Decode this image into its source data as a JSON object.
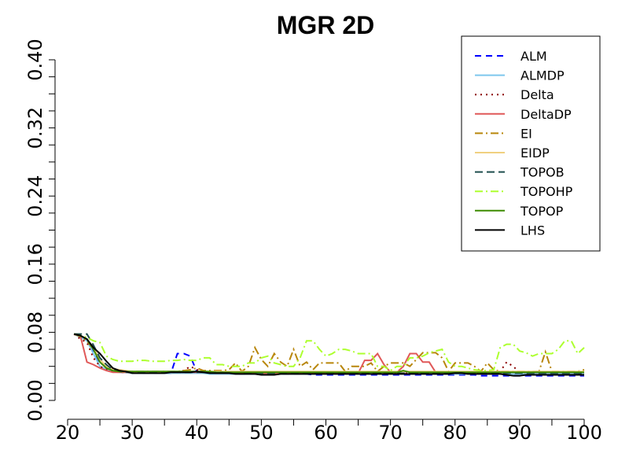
{
  "chart_data": {
    "type": "line",
    "title": "MGR 2D",
    "xlabel": "",
    "ylabel": "",
    "xlim": [
      20,
      100
    ],
    "ylim": [
      0,
      0.4
    ],
    "xticks": [
      20,
      30,
      40,
      50,
      60,
      70,
      80,
      90,
      100
    ],
    "yticks": [
      0,
      0.08,
      0.16,
      0.24,
      0.32,
      0.4
    ],
    "xtick_labels": [
      "20",
      "30",
      "40",
      "50",
      "60",
      "70",
      "80",
      "90",
      "100"
    ],
    "ytick_labels": [
      "0.00",
      "0.08",
      "0.16",
      "0.24",
      "0.32",
      "0.40"
    ],
    "legend_position": "top-right",
    "x": [
      21,
      22,
      23,
      24,
      25,
      26,
      27,
      28,
      29,
      30,
      31,
      32,
      33,
      34,
      35,
      36,
      37,
      38,
      39,
      40,
      41,
      42,
      43,
      44,
      45,
      46,
      47,
      48,
      49,
      50,
      51,
      52,
      53,
      54,
      55,
      56,
      57,
      58,
      59,
      60,
      61,
      62,
      63,
      64,
      65,
      66,
      67,
      68,
      69,
      70,
      71,
      72,
      73,
      74,
      75,
      76,
      77,
      78,
      79,
      80,
      81,
      82,
      83,
      84,
      85,
      86,
      87,
      88,
      89,
      90,
      91,
      92,
      93,
      94,
      95,
      96,
      97,
      98,
      99,
      100
    ],
    "series": [
      {
        "name": "ALM",
        "color": "#0000ff",
        "dash": "8,6",
        "values": [
          0.078,
          0.075,
          0.072,
          0.058,
          0.04,
          0.036,
          0.034,
          0.033,
          0.033,
          0.033,
          0.032,
          0.032,
          0.032,
          0.032,
          0.032,
          0.032,
          0.055,
          0.055,
          0.052,
          0.034,
          0.033,
          0.032,
          0.032,
          0.032,
          0.032,
          0.031,
          0.031,
          0.031,
          0.031,
          0.031,
          0.031,
          0.031,
          0.031,
          0.031,
          0.031,
          0.031,
          0.031,
          0.03,
          0.03,
          0.03,
          0.03,
          0.03,
          0.03,
          0.03,
          0.03,
          0.03,
          0.03,
          0.03,
          0.03,
          0.03,
          0.03,
          0.03,
          0.03,
          0.03,
          0.03,
          0.03,
          0.03,
          0.03,
          0.03,
          0.03,
          0.03,
          0.03,
          0.03,
          0.029,
          0.029,
          0.029,
          0.029,
          0.029,
          0.029,
          0.029,
          0.029,
          0.029,
          0.029,
          0.029,
          0.029,
          0.029,
          0.029,
          0.029,
          0.029,
          0.029
        ]
      },
      {
        "name": "ALMDP",
        "color": "#7ec8ed",
        "dash": "",
        "values": [
          0.078,
          0.074,
          0.07,
          0.055,
          0.04,
          0.036,
          0.034,
          0.033,
          0.033,
          0.032,
          0.032,
          0.032,
          0.032,
          0.032,
          0.032,
          0.032,
          0.032,
          0.032,
          0.032,
          0.032,
          0.032,
          0.031,
          0.031,
          0.031,
          0.031,
          0.031,
          0.031,
          0.031,
          0.031,
          0.031,
          0.031,
          0.031,
          0.031,
          0.031,
          0.031,
          0.031,
          0.031,
          0.031,
          0.031,
          0.031,
          0.031,
          0.031,
          0.031,
          0.031,
          0.031,
          0.031,
          0.031,
          0.031,
          0.031,
          0.031,
          0.031,
          0.031,
          0.031,
          0.031,
          0.031,
          0.031,
          0.031,
          0.031,
          0.031,
          0.031,
          0.031,
          0.031,
          0.031,
          0.031,
          0.031,
          0.031,
          0.031,
          0.031,
          0.031,
          0.031,
          0.031,
          0.031,
          0.031,
          0.031,
          0.031,
          0.031,
          0.031,
          0.031,
          0.031,
          0.031
        ]
      },
      {
        "name": "Delta",
        "color": "#8b0000",
        "dash": "2,5",
        "values": [
          0.078,
          0.072,
          0.068,
          0.05,
          0.04,
          0.036,
          0.034,
          0.033,
          0.033,
          0.033,
          0.033,
          0.033,
          0.033,
          0.033,
          0.033,
          0.033,
          0.033,
          0.035,
          0.04,
          0.036,
          0.034,
          0.033,
          0.033,
          0.033,
          0.033,
          0.033,
          0.033,
          0.033,
          0.033,
          0.033,
          0.033,
          0.032,
          0.032,
          0.032,
          0.032,
          0.032,
          0.032,
          0.032,
          0.032,
          0.032,
          0.032,
          0.032,
          0.032,
          0.032,
          0.032,
          0.032,
          0.032,
          0.032,
          0.032,
          0.032,
          0.032,
          0.032,
          0.032,
          0.032,
          0.032,
          0.032,
          0.032,
          0.032,
          0.032,
          0.032,
          0.032,
          0.032,
          0.032,
          0.032,
          0.032,
          0.033,
          0.034,
          0.045,
          0.04,
          0.033,
          0.033,
          0.033,
          0.033,
          0.033,
          0.033,
          0.033,
          0.033,
          0.033,
          0.033,
          0.033
        ]
      },
      {
        "name": "DeltaDP",
        "color": "#e05858",
        "dash": "",
        "values": [
          0.078,
          0.075,
          0.045,
          0.042,
          0.038,
          0.035,
          0.033,
          0.033,
          0.033,
          0.033,
          0.033,
          0.033,
          0.033,
          0.033,
          0.033,
          0.033,
          0.033,
          0.033,
          0.033,
          0.033,
          0.033,
          0.033,
          0.032,
          0.032,
          0.032,
          0.032,
          0.032,
          0.032,
          0.032,
          0.032,
          0.032,
          0.032,
          0.032,
          0.032,
          0.032,
          0.032,
          0.032,
          0.032,
          0.032,
          0.032,
          0.032,
          0.032,
          0.032,
          0.032,
          0.032,
          0.047,
          0.047,
          0.055,
          0.042,
          0.033,
          0.033,
          0.04,
          0.055,
          0.055,
          0.045,
          0.045,
          0.033,
          0.033,
          0.033,
          0.033,
          0.033,
          0.033,
          0.033,
          0.033,
          0.033,
          0.033,
          0.033,
          0.033,
          0.033,
          0.033,
          0.033,
          0.033,
          0.033,
          0.033,
          0.033,
          0.033,
          0.033,
          0.033,
          0.033,
          0.033
        ]
      },
      {
        "name": "EI",
        "color": "#b8860b",
        "dash": "10,4,2,4",
        "values": [
          0.078,
          0.075,
          0.07,
          0.06,
          0.045,
          0.038,
          0.035,
          0.034,
          0.034,
          0.034,
          0.034,
          0.034,
          0.034,
          0.034,
          0.034,
          0.034,
          0.034,
          0.035,
          0.036,
          0.038,
          0.035,
          0.035,
          0.035,
          0.035,
          0.036,
          0.044,
          0.034,
          0.04,
          0.062,
          0.048,
          0.04,
          0.055,
          0.045,
          0.04,
          0.06,
          0.04,
          0.045,
          0.036,
          0.044,
          0.044,
          0.044,
          0.044,
          0.034,
          0.04,
          0.04,
          0.04,
          0.044,
          0.034,
          0.04,
          0.044,
          0.044,
          0.044,
          0.04,
          0.048,
          0.056,
          0.056,
          0.056,
          0.05,
          0.034,
          0.044,
          0.044,
          0.044,
          0.04,
          0.034,
          0.044,
          0.036,
          0.034,
          0.034,
          0.034,
          0.034,
          0.034,
          0.034,
          0.034,
          0.057,
          0.034,
          0.034,
          0.034,
          0.034,
          0.034,
          0.036
        ]
      },
      {
        "name": "EIDP",
        "color": "#f0d080",
        "dash": "",
        "values": [
          0.078,
          0.076,
          0.072,
          0.062,
          0.048,
          0.04,
          0.037,
          0.036,
          0.035,
          0.034,
          0.034,
          0.034,
          0.034,
          0.034,
          0.034,
          0.034,
          0.034,
          0.034,
          0.034,
          0.034,
          0.034,
          0.034,
          0.034,
          0.034,
          0.034,
          0.034,
          0.034,
          0.034,
          0.034,
          0.034,
          0.034,
          0.034,
          0.034,
          0.034,
          0.034,
          0.034,
          0.034,
          0.034,
          0.034,
          0.034,
          0.034,
          0.034,
          0.034,
          0.034,
          0.034,
          0.034,
          0.034,
          0.034,
          0.034,
          0.034,
          0.034,
          0.034,
          0.034,
          0.034,
          0.034,
          0.034,
          0.034,
          0.034,
          0.034,
          0.034,
          0.034,
          0.034,
          0.034,
          0.034,
          0.034,
          0.034,
          0.034,
          0.034,
          0.034,
          0.034,
          0.034,
          0.034,
          0.034,
          0.034,
          0.034,
          0.034,
          0.034,
          0.034,
          0.034,
          0.034
        ]
      },
      {
        "name": "TOPOB",
        "color": "#1f4e4e",
        "dash": "10,5",
        "values": [
          0.078,
          0.078,
          0.078,
          0.065,
          0.05,
          0.042,
          0.036,
          0.034,
          0.033,
          0.033,
          0.033,
          0.033,
          0.033,
          0.033,
          0.033,
          0.033,
          0.033,
          0.033,
          0.033,
          0.033,
          0.033,
          0.033,
          0.033,
          0.033,
          0.032,
          0.032,
          0.032,
          0.032,
          0.032,
          0.032,
          0.032,
          0.032,
          0.032,
          0.032,
          0.032,
          0.032,
          0.032,
          0.032,
          0.032,
          0.032,
          0.032,
          0.032,
          0.032,
          0.032,
          0.032,
          0.032,
          0.032,
          0.032,
          0.032,
          0.032,
          0.032,
          0.032,
          0.032,
          0.032,
          0.032,
          0.032,
          0.032,
          0.032,
          0.032,
          0.032,
          0.032,
          0.032,
          0.032,
          0.032,
          0.032,
          0.032,
          0.032,
          0.032,
          0.032,
          0.032,
          0.032,
          0.032,
          0.032,
          0.032,
          0.032,
          0.032,
          0.032,
          0.032,
          0.032,
          0.031
        ]
      },
      {
        "name": "TOPOHP",
        "color": "#adff2f",
        "dash": "10,4,2,4",
        "values": [
          0.078,
          0.076,
          0.074,
          0.07,
          0.068,
          0.052,
          0.048,
          0.046,
          0.046,
          0.046,
          0.047,
          0.047,
          0.046,
          0.046,
          0.046,
          0.047,
          0.047,
          0.048,
          0.047,
          0.047,
          0.05,
          0.05,
          0.042,
          0.042,
          0.04,
          0.04,
          0.04,
          0.044,
          0.044,
          0.05,
          0.052,
          0.044,
          0.042,
          0.04,
          0.04,
          0.05,
          0.07,
          0.07,
          0.06,
          0.052,
          0.055,
          0.06,
          0.06,
          0.058,
          0.055,
          0.055,
          0.055,
          0.04,
          0.04,
          0.035,
          0.04,
          0.04,
          0.05,
          0.05,
          0.052,
          0.056,
          0.058,
          0.06,
          0.045,
          0.04,
          0.04,
          0.038,
          0.036,
          0.035,
          0.035,
          0.036,
          0.062,
          0.066,
          0.066,
          0.058,
          0.056,
          0.052,
          0.055,
          0.055,
          0.055,
          0.06,
          0.07,
          0.07,
          0.055,
          0.062
        ]
      },
      {
        "name": "TOPOP",
        "color": "#3d8b00",
        "dash": "",
        "values": [
          0.078,
          0.076,
          0.072,
          0.06,
          0.045,
          0.038,
          0.035,
          0.034,
          0.034,
          0.034,
          0.034,
          0.034,
          0.034,
          0.034,
          0.034,
          0.034,
          0.034,
          0.034,
          0.034,
          0.034,
          0.034,
          0.034,
          0.033,
          0.033,
          0.033,
          0.033,
          0.033,
          0.033,
          0.033,
          0.033,
          0.033,
          0.033,
          0.033,
          0.033,
          0.033,
          0.033,
          0.033,
          0.033,
          0.033,
          0.033,
          0.033,
          0.033,
          0.033,
          0.033,
          0.033,
          0.033,
          0.033,
          0.033,
          0.033,
          0.033,
          0.033,
          0.035,
          0.033,
          0.033,
          0.033,
          0.033,
          0.033,
          0.033,
          0.033,
          0.033,
          0.033,
          0.033,
          0.033,
          0.033,
          0.033,
          0.033,
          0.033,
          0.033,
          0.033,
          0.033,
          0.033,
          0.033,
          0.033,
          0.033,
          0.033,
          0.033,
          0.033,
          0.033,
          0.033,
          0.033
        ]
      },
      {
        "name": "LHS",
        "color": "#000000",
        "dash": "",
        "values": [
          0.078,
          0.076,
          0.072,
          0.062,
          0.055,
          0.046,
          0.038,
          0.035,
          0.034,
          0.032,
          0.032,
          0.032,
          0.032,
          0.032,
          0.032,
          0.033,
          0.033,
          0.033,
          0.033,
          0.034,
          0.033,
          0.032,
          0.032,
          0.032,
          0.032,
          0.031,
          0.031,
          0.031,
          0.031,
          0.03,
          0.03,
          0.03,
          0.031,
          0.031,
          0.031,
          0.031,
          0.031,
          0.031,
          0.031,
          0.031,
          0.031,
          0.031,
          0.031,
          0.031,
          0.031,
          0.031,
          0.031,
          0.031,
          0.031,
          0.031,
          0.031,
          0.031,
          0.031,
          0.031,
          0.031,
          0.031,
          0.031,
          0.031,
          0.031,
          0.032,
          0.032,
          0.031,
          0.031,
          0.031,
          0.031,
          0.031,
          0.031,
          0.03,
          0.029,
          0.029,
          0.03,
          0.03,
          0.03,
          0.03,
          0.03,
          0.03,
          0.03,
          0.03,
          0.03,
          0.03
        ]
      }
    ]
  }
}
